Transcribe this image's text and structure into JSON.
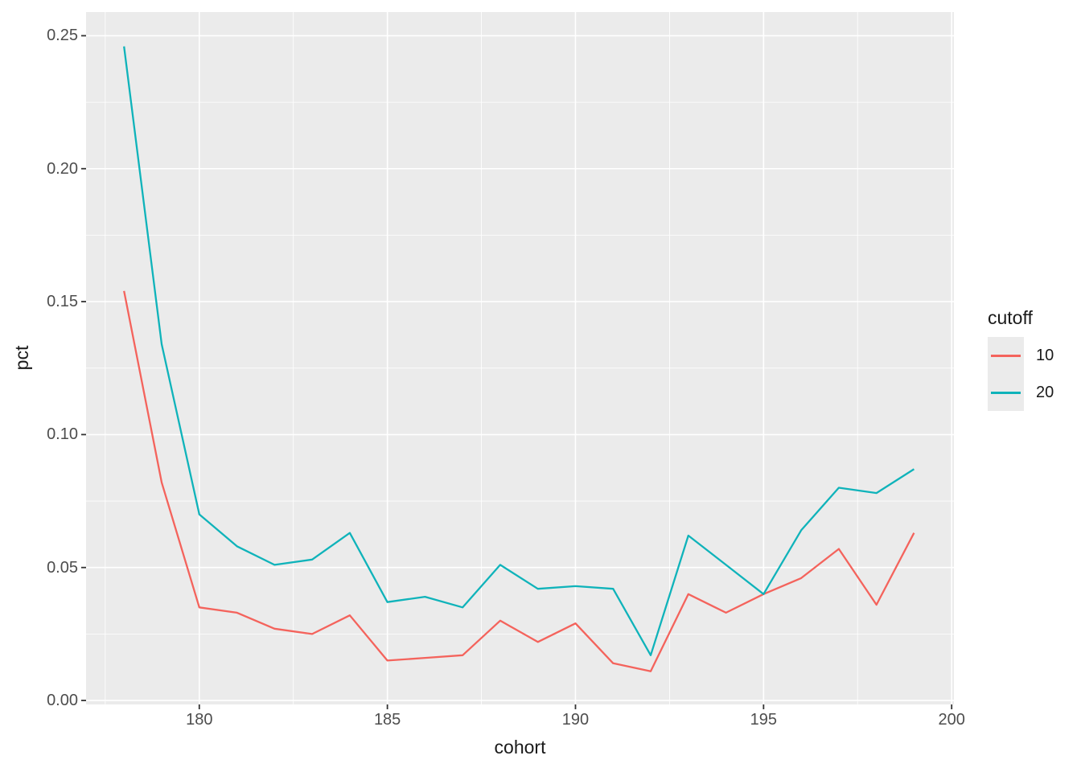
{
  "colors": {
    "page_bg": "#FFFFFF",
    "panel_bg": "#EBEBEB",
    "grid": "#FFFFFF",
    "axis_text": "#4D4D4D",
    "title_text": "#1A1A1A",
    "tick_mark": "#333333",
    "series_10": "#F4635C",
    "series_20": "#0FB3BA"
  },
  "chart_data": {
    "type": "line",
    "title": "",
    "xlabel": "cohort",
    "ylabel": "pct",
    "x": [
      178,
      179,
      180,
      181,
      182,
      183,
      184,
      185,
      186,
      187,
      188,
      189,
      190,
      191,
      192,
      193,
      194,
      195,
      196,
      197,
      198,
      199
    ],
    "series": [
      {
        "name": "10",
        "color": "#F4635C",
        "values": [
          0.154,
          0.082,
          0.035,
          0.033,
          0.027,
          0.025,
          0.032,
          0.015,
          0.016,
          0.017,
          0.03,
          0.022,
          0.029,
          0.014,
          0.011,
          0.04,
          0.033,
          0.04,
          0.046,
          0.057,
          0.036,
          0.063
        ]
      },
      {
        "name": "20",
        "color": "#0FB3BA",
        "values": [
          0.246,
          0.134,
          0.07,
          0.058,
          0.051,
          0.053,
          0.063,
          0.037,
          0.039,
          0.035,
          0.051,
          0.042,
          0.043,
          0.042,
          0.017,
          0.062,
          0.051,
          0.04,
          0.064,
          0.08,
          0.078,
          0.087
        ]
      }
    ],
    "legend": {
      "title": "cutoff",
      "position": "right",
      "entries": [
        "10",
        "20"
      ]
    },
    "x_ticks": [
      180,
      185,
      190,
      195,
      200
    ],
    "x_tick_labels": [
      "180",
      "185",
      "190",
      "195",
      "200"
    ],
    "x_minor": [
      177.5,
      182.5,
      187.5,
      192.5,
      197.5
    ],
    "y_ticks": [
      0,
      0.05,
      0.1,
      0.15,
      0.2,
      0.25
    ],
    "y_tick_labels": [
      "0.00",
      "0.05",
      "0.10",
      "0.15",
      "0.20",
      "0.25"
    ],
    "y_minor": [
      0.025,
      0.075,
      0.125,
      0.175,
      0.225
    ],
    "xlim": [
      176.99,
      200.06
    ],
    "ylim": [
      -0.0015,
      0.2589
    ],
    "grid": "major-and-minor-white-on-gray"
  }
}
